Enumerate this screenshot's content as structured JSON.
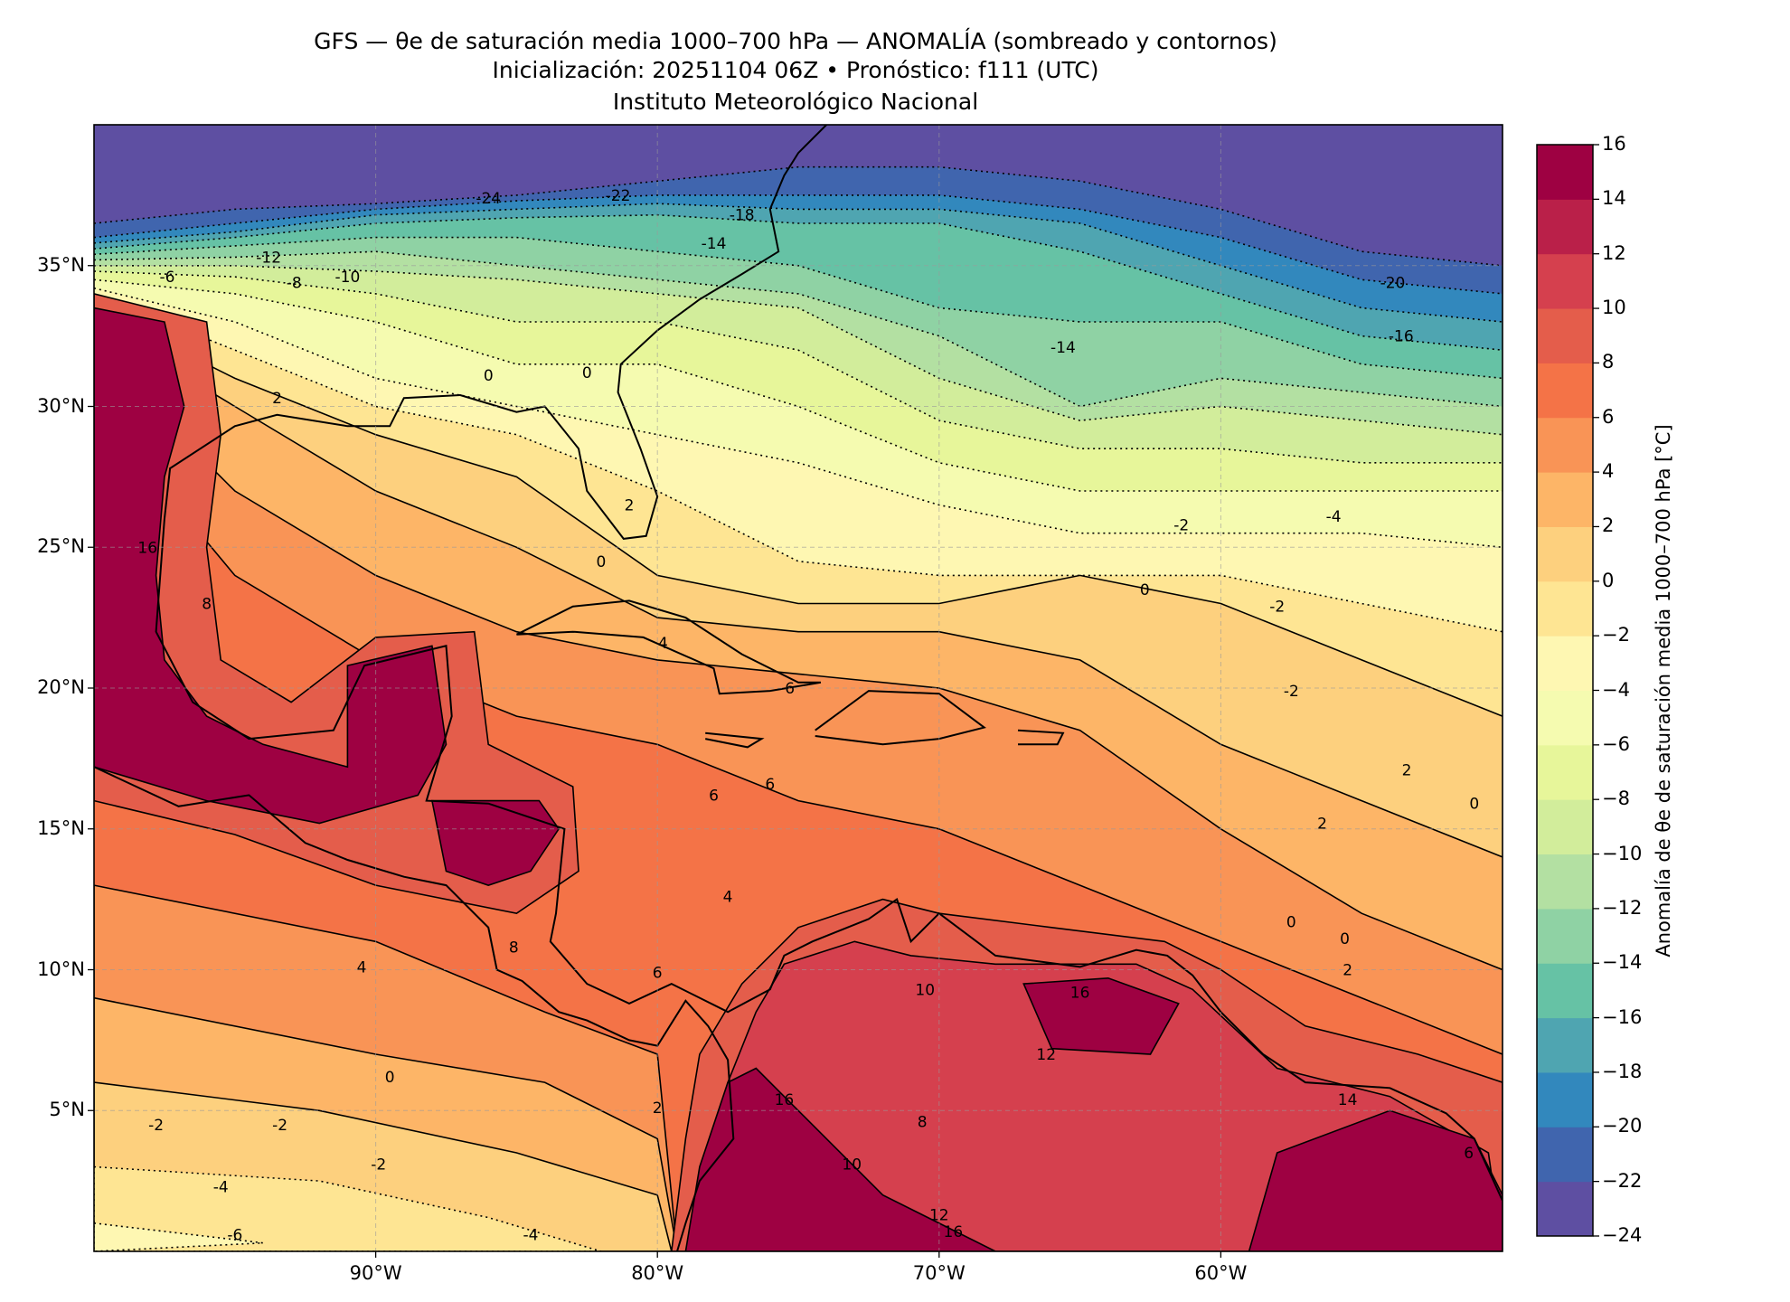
{
  "title": {
    "line1": "GFS — θe de saturación media 1000–700 hPa — ANOMALÍA (sombreado y contornos)",
    "line2": "Inicialización: 20251104 06Z   •   Pronóstico: f111 (UTC)",
    "line3": "Instituto Meteorológico Nacional"
  },
  "chart_data": {
    "type": "heatmap",
    "title": "GFS — θe de saturación media 1000–700 hPa — ANOMALÍA (sombreado y contornos)",
    "extent": {
      "lon": [
        -100,
        -50
      ],
      "lat": [
        0,
        40
      ]
    },
    "x_ticks": [
      {
        "lon": -90,
        "label": "90°W"
      },
      {
        "lon": -80,
        "label": "80°W"
      },
      {
        "lon": -70,
        "label": "70°W"
      },
      {
        "lon": -60,
        "label": "60°W"
      }
    ],
    "y_ticks": [
      {
        "lat": 35,
        "label": "35°N"
      },
      {
        "lat": 30,
        "label": "30°N"
      },
      {
        "lat": 25,
        "label": "25°N"
      },
      {
        "lat": 20,
        "label": "20°N"
      },
      {
        "lat": 15,
        "label": "15°N"
      },
      {
        "lat": 10,
        "label": "10°N"
      },
      {
        "lat": 5,
        "label": "5°N"
      }
    ],
    "colorbar": {
      "label": "Anomalía de θe de saturación media 1000–700 hPa [°C]",
      "range": [
        -24,
        16
      ],
      "levels": [
        -24,
        -22,
        -20,
        -18,
        -16,
        -14,
        -12,
        -10,
        -8,
        -6,
        -4,
        -2,
        0,
        2,
        4,
        6,
        8,
        10,
        12,
        14,
        16
      ],
      "tick_labels": [
        "16",
        "14",
        "12",
        "10",
        "8",
        "6",
        "4",
        "2",
        "0",
        "−2",
        "−4",
        "−6",
        "−8",
        "−10",
        "−12",
        "−14",
        "−16",
        "−18",
        "−20",
        "−22",
        "−24"
      ],
      "colors": [
        "#5e4fa2",
        "#4065ae",
        "#3288bd",
        "#4fa5b1",
        "#66c2a5",
        "#8fd2a4",
        "#b3e0a2",
        "#d2ed9b",
        "#e7f69a",
        "#f5fbb0",
        "#fef7b2",
        "#fee593",
        "#fdd07e",
        "#fdb567",
        "#f99456",
        "#f47347",
        "#e45d4b",
        "#d5404e",
        "#ba2049",
        "#9e0142"
      ]
    },
    "contour_labels": [
      {
        "v": "-24",
        "lon": -86.0,
        "lat": 37.4
      },
      {
        "v": "-22",
        "lon": -81.4,
        "lat": 37.5
      },
      {
        "v": "-18",
        "lon": -77.0,
        "lat": 36.8
      },
      {
        "v": "-14",
        "lon": -78.0,
        "lat": 35.8
      },
      {
        "v": "-12",
        "lon": -93.8,
        "lat": 35.3
      },
      {
        "v": "-8",
        "lon": -92.9,
        "lat": 34.4
      },
      {
        "v": "-10",
        "lon": -91.0,
        "lat": 34.6
      },
      {
        "v": "-6",
        "lon": -97.4,
        "lat": 34.6
      },
      {
        "v": "-20",
        "lon": -53.9,
        "lat": 34.4
      },
      {
        "v": "-16",
        "lon": -53.6,
        "lat": 32.5
      },
      {
        "v": "-14",
        "lon": -65.6,
        "lat": 32.1
      },
      {
        "v": "0",
        "lon": -86.0,
        "lat": 31.1
      },
      {
        "v": "0",
        "lon": -82.5,
        "lat": 31.2
      },
      {
        "v": "2",
        "lon": -93.5,
        "lat": 30.3
      },
      {
        "v": "2",
        "lon": -81.0,
        "lat": 26.5
      },
      {
        "v": "0",
        "lon": -82.0,
        "lat": 24.5
      },
      {
        "v": "-2",
        "lon": -61.4,
        "lat": 25.8
      },
      {
        "v": "-4",
        "lon": -56.0,
        "lat": 26.1
      },
      {
        "v": "0",
        "lon": -62.7,
        "lat": 23.5
      },
      {
        "v": "-2",
        "lon": -58.0,
        "lat": 22.9
      },
      {
        "v": "4",
        "lon": -79.8,
        "lat": 21.6
      },
      {
        "v": "-2",
        "lon": -57.5,
        "lat": 19.9
      },
      {
        "v": "6",
        "lon": -75.3,
        "lat": 20.0
      },
      {
        "v": "8",
        "lon": -96.0,
        "lat": 23.0
      },
      {
        "v": "16",
        "lon": -98.1,
        "lat": 25.0
      },
      {
        "v": "6",
        "lon": -78.0,
        "lat": 16.2
      },
      {
        "v": "6",
        "lon": -76.0,
        "lat": 16.6
      },
      {
        "v": "2",
        "lon": -53.4,
        "lat": 17.1
      },
      {
        "v": "0",
        "lon": -51.0,
        "lat": 15.9
      },
      {
        "v": "2",
        "lon": -56.4,
        "lat": 15.2
      },
      {
        "v": "4",
        "lon": -77.5,
        "lat": 12.6
      },
      {
        "v": "0",
        "lon": -57.5,
        "lat": 11.7
      },
      {
        "v": "0",
        "lon": -55.6,
        "lat": 11.1
      },
      {
        "v": "2",
        "lon": -55.5,
        "lat": 10.0
      },
      {
        "v": "4",
        "lon": -90.5,
        "lat": 10.1
      },
      {
        "v": "6",
        "lon": -80.0,
        "lat": 9.9
      },
      {
        "v": "8",
        "lon": -85.1,
        "lat": 10.8
      },
      {
        "v": "10",
        "lon": -70.5,
        "lat": 9.3
      },
      {
        "v": "16",
        "lon": -65.0,
        "lat": 9.2
      },
      {
        "v": "12",
        "lon": -66.2,
        "lat": 7.0
      },
      {
        "v": "0",
        "lon": -89.5,
        "lat": 6.2
      },
      {
        "v": "2",
        "lon": -80.0,
        "lat": 5.1
      },
      {
        "v": "-2",
        "lon": -97.8,
        "lat": 4.5
      },
      {
        "v": "-2",
        "lon": -93.4,
        "lat": 4.5
      },
      {
        "v": "-2",
        "lon": -89.9,
        "lat": 3.1
      },
      {
        "v": "-4",
        "lon": -95.5,
        "lat": 2.3
      },
      {
        "v": "-6",
        "lon": -95.0,
        "lat": 0.6
      },
      {
        "v": "-4",
        "lon": -84.5,
        "lat": 0.6
      },
      {
        "v": "16",
        "lon": -75.5,
        "lat": 5.4
      },
      {
        "v": "8",
        "lon": -70.6,
        "lat": 4.6
      },
      {
        "v": "10",
        "lon": -73.1,
        "lat": 3.1
      },
      {
        "v": "12",
        "lon": -70.0,
        "lat": 1.3
      },
      {
        "v": "16",
        "lon": -69.5,
        "lat": 0.7
      },
      {
        "v": "14",
        "lon": -55.5,
        "lat": 5.4
      },
      {
        "v": "6",
        "lon": -51.2,
        "lat": 3.5
      }
    ]
  }
}
